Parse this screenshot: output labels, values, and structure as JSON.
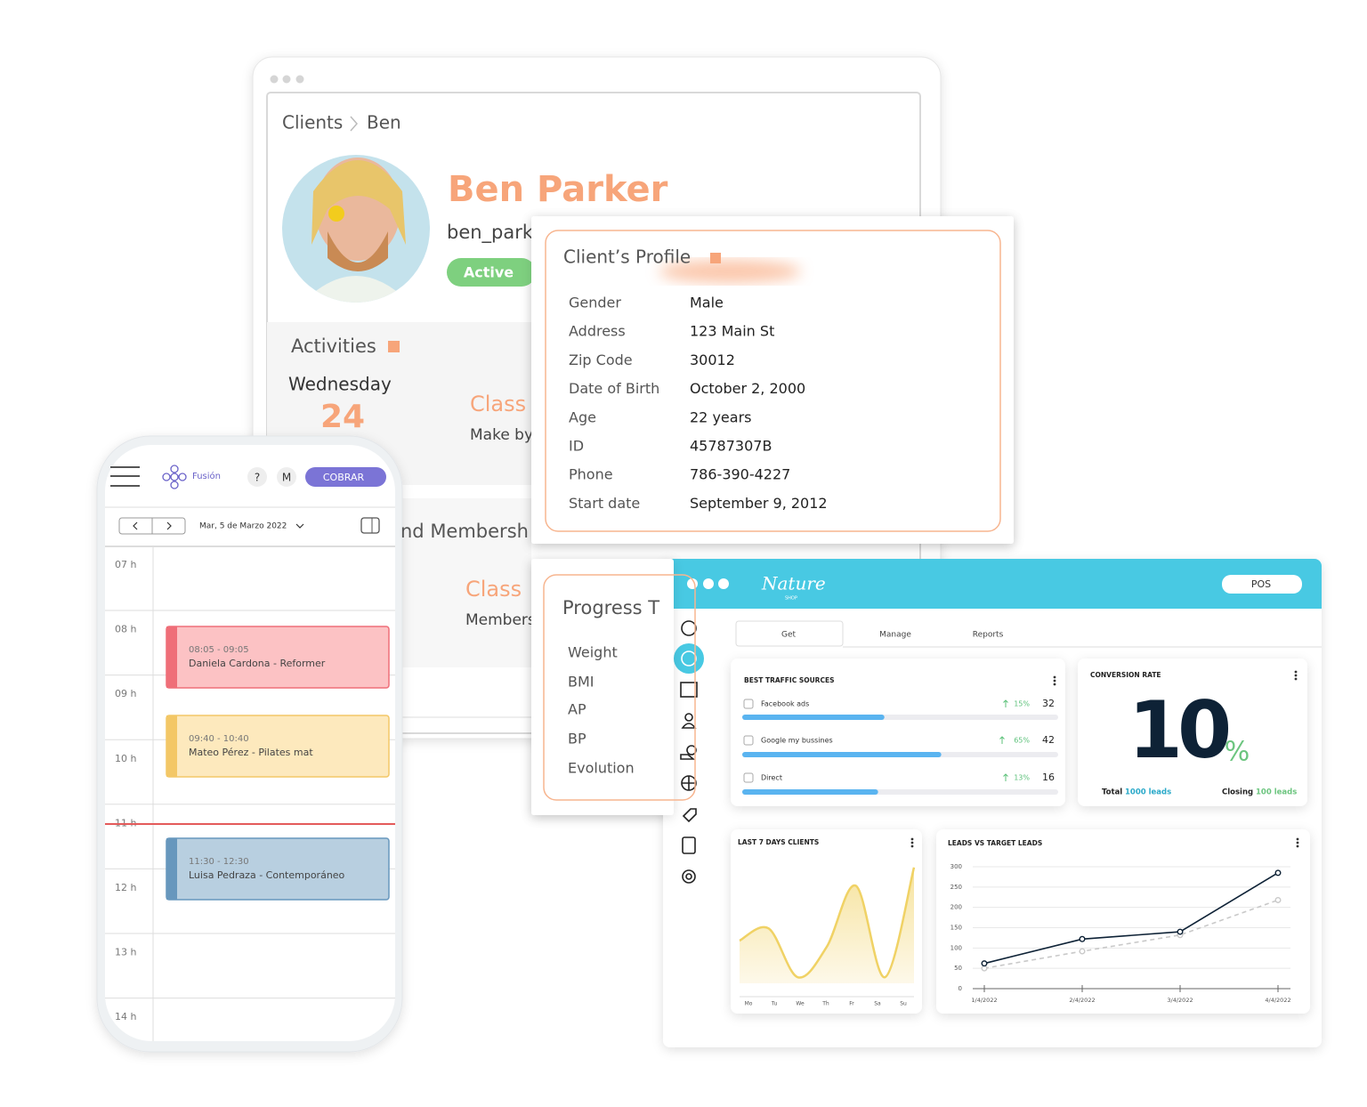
{
  "crm": {
    "breadcrumb": [
      "Clients",
      "Ben"
    ],
    "name": "Ben Parker",
    "username": "ben_park",
    "status": "Active",
    "activities": {
      "title": "Activities",
      "day": "Wednesday",
      "date": "24",
      "class": "Class",
      "note": "Make by"
    },
    "membership": {
      "title": "nd Membersh",
      "class": "Class",
      "note": "Members"
    }
  },
  "profile": {
    "title": "Client’s Profile",
    "fields": [
      [
        "Gender",
        "Male"
      ],
      [
        "Address",
        "123 Main St"
      ],
      [
        "Zip Code",
        "30012"
      ],
      [
        "Date of Birth",
        "October 2, 2000"
      ],
      [
        "Age",
        "22 years"
      ],
      [
        "ID",
        "45787307B"
      ],
      [
        "Phone",
        "786-390-4227"
      ],
      [
        "Start date",
        "September 9, 2012"
      ]
    ]
  },
  "progress": {
    "title": "Progress T",
    "items": [
      "Weight",
      "BMI",
      "AP",
      "BP",
      "Evolution"
    ]
  },
  "phone": {
    "brand": "Fusión",
    "help": "?",
    "user": "M",
    "action": "COBRAR",
    "date": "Mar, 5 de Marzo 2022",
    "hours": [
      "07 h",
      "08 h",
      "09 h",
      "10 h",
      "11 h",
      "12 h",
      "13 h",
      "14 h"
    ],
    "events": [
      {
        "time": "08:05 - 09:05",
        "title": "Daniela Cardona - Reformer"
      },
      {
        "time": "09:40 - 10:40",
        "title": "Mateo Pérez - Pilates mat"
      },
      {
        "time": "11:30 - 12:30",
        "title": "Luisa Pedraza - Contemporáneo"
      }
    ]
  },
  "dashboard": {
    "brand": "Nature",
    "brand_sub": "SHOP",
    "pos": "POS",
    "tabs": [
      "Get",
      "Manage",
      "Reports"
    ],
    "traffic": {
      "title": "BEST TRAFFIC SOURCES",
      "rows": [
        {
          "name": "Facebook ads",
          "change": "15%",
          "count": "32",
          "bar": 45
        },
        {
          "name": "Google my bussines",
          "change": "65%",
          "count": "42",
          "bar": 63
        },
        {
          "name": "Direct",
          "change": "13%",
          "count": "16",
          "bar": 43
        }
      ]
    },
    "conversion": {
      "title": "CONVERSION RATE",
      "value": "10",
      "unit": "%",
      "total_label": "Total",
      "total": "1000 leads",
      "closing_label": "Closing",
      "closing": "100 leads"
    }
  },
  "chart_data": [
    {
      "type": "area",
      "title": "LAST 7 DAYS CLIENTS",
      "categories": [
        "Mo",
        "Tu",
        "We",
        "Th",
        "Fr",
        "Sa",
        "Su"
      ],
      "values": [
        35,
        45,
        5,
        30,
        80,
        5,
        95
      ],
      "color": "#f0d265",
      "ylim": [
        0,
        100
      ]
    },
    {
      "type": "line",
      "title": "LEADS VS TARGET LEADS",
      "categories": [
        "1/4/2022",
        "2/4/2022",
        "3/4/2022",
        "4/4/2022"
      ],
      "series": [
        {
          "values": [
            62,
            122,
            140,
            285
          ],
          "color": "#0e2236",
          "dashed": false
        },
        {
          "values": [
            50,
            92,
            132,
            218
          ],
          "color": "#c9c9c9",
          "dashed": true
        }
      ],
      "ylim": [
        0,
        300
      ],
      "yticks": [
        0,
        50,
        100,
        150,
        200,
        250,
        300
      ],
      "grid": true
    }
  ]
}
